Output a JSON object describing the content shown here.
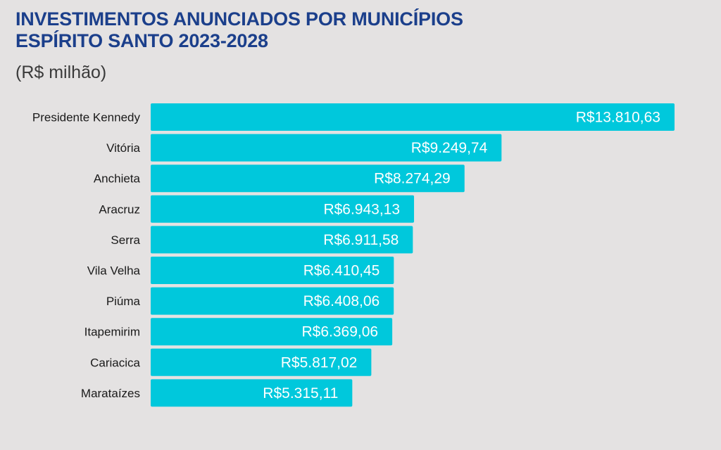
{
  "header": {
    "title_line1": "INVESTIMENTOS ANUNCIADOS POR MUNICÍPIOS",
    "title_line2": "ESPÍRITO SANTO 2023-2028",
    "unit": "(R$ milhão)"
  },
  "colors": {
    "bar": "#00c8dc",
    "title": "#1b3f8b",
    "background": "#e4e2e2"
  },
  "chart_data": {
    "type": "bar",
    "orientation": "horizontal",
    "title": "INVESTIMENTOS ANUNCIADOS POR MUNICÍPIOS ESPÍRITO SANTO 2023-2028",
    "subtitle": "(R$ milhão)",
    "categories": [
      "Presidente Kennedy",
      "Vitória",
      "Anchieta",
      "Aracruz",
      "Serra",
      "Vila Velha",
      "Piúma",
      "Itapemirim",
      "Cariacica",
      "Marataízes"
    ],
    "values": [
      13810.63,
      9249.74,
      8274.29,
      6943.13,
      6911.58,
      6410.45,
      6408.06,
      6369.06,
      5817.02,
      5315.11
    ],
    "value_labels": [
      "R$13.810,63",
      "R$9.249,74",
      "R$8.274,29",
      "R$6.943,13",
      "R$6.911,58",
      "R$6.410,45",
      "R$6.408,06",
      "R$6.369,06",
      "R$5.817,02",
      "R$5.315,11"
    ],
    "xlim": [
      0,
      13810.63
    ],
    "grid": false,
    "legend": "none"
  }
}
